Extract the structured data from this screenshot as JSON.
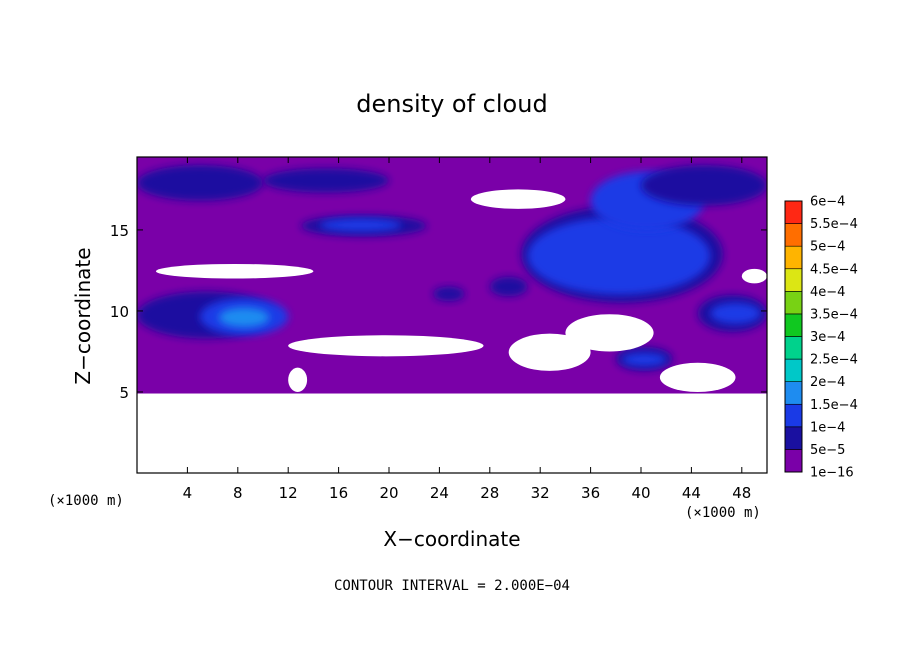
{
  "chart_data": {
    "type": "heatmap",
    "title": "density of cloud",
    "xlabel": "X−coordinate",
    "ylabel": "Z−coordinate",
    "x_unit": "(×1000 m)",
    "y_unit": "(×1000 m)",
    "xlim": [
      0,
      50
    ],
    "ylim": [
      0,
      19.5
    ],
    "x_ticks": [
      {
        "value": 4,
        "label": "4"
      },
      {
        "value": 8,
        "label": "8"
      },
      {
        "value": 12,
        "label": "12"
      },
      {
        "value": 16,
        "label": "16"
      },
      {
        "value": 20,
        "label": "20"
      },
      {
        "value": 24,
        "label": "24"
      },
      {
        "value": 28,
        "label": "28"
      },
      {
        "value": 32,
        "label": "32"
      },
      {
        "value": 36,
        "label": "36"
      },
      {
        "value": 40,
        "label": "40"
      },
      {
        "value": 44,
        "label": "44"
      },
      {
        "value": 48,
        "label": "48"
      }
    ],
    "y_ticks": [
      {
        "value": 5,
        "label": "5"
      },
      {
        "value": 10,
        "label": "10"
      },
      {
        "value": 15,
        "label": "15"
      }
    ],
    "footer": "CONTOUR INTERVAL = 2.000E−04",
    "colorbar": {
      "levels": [
        {
          "label": "1e−16",
          "color": "#7a00a8"
        },
        {
          "label": "5e−5",
          "color": "#1a10a0"
        },
        {
          "label": "1e−4",
          "color": "#1a3ae6"
        },
        {
          "label": "1.5e−4",
          "color": "#1e8cf0"
        },
        {
          "label": "2e−4",
          "color": "#00c8c8"
        },
        {
          "label": "2.5e−4",
          "color": "#00d28c"
        },
        {
          "label": "3e−4",
          "color": "#10c820"
        },
        {
          "label": "3.5e−4",
          "color": "#78d214"
        },
        {
          "label": "4e−4",
          "color": "#dce614"
        },
        {
          "label": "4.5e−4",
          "color": "#ffb400"
        },
        {
          "label": "5e−4",
          "color": "#ff6e00"
        },
        {
          "label": "5.5e−4",
          "color": "#ff2814"
        },
        {
          "label": "6e−4",
          "color": "#ff8c8c"
        }
      ]
    },
    "regions": [
      {
        "kind": "base",
        "x": [
          0,
          50
        ],
        "z": [
          4.9,
          19.5
        ],
        "level": 0
      },
      {
        "kind": "blob",
        "x": [
          0,
          10
        ],
        "z": [
          16.8,
          19
        ],
        "level": 1
      },
      {
        "kind": "blob",
        "x": [
          10,
          20
        ],
        "z": [
          17.3,
          18.8
        ],
        "level": 1
      },
      {
        "kind": "blob",
        "x": [
          13,
          23
        ],
        "z": [
          14.6,
          15.9
        ],
        "level": 1
      },
      {
        "kind": "blob",
        "x": [
          14.5,
          21
        ],
        "z": [
          14.9,
          15.7
        ],
        "level": 2
      },
      {
        "kind": "blob",
        "x": [
          0,
          11
        ],
        "z": [
          8.3,
          11.2
        ],
        "level": 1
      },
      {
        "kind": "blob",
        "x": [
          5,
          12
        ],
        "z": [
          8.5,
          10.8
        ],
        "level": 2
      },
      {
        "kind": "blob",
        "x": [
          6.5,
          10.5
        ],
        "z": [
          9.0,
          10.2
        ],
        "level": 3
      },
      {
        "kind": "blob",
        "x": [
          30.5,
          46.5
        ],
        "z": [
          10.5,
          16.5
        ],
        "level": 1
      },
      {
        "kind": "blob",
        "x": [
          31,
          45.5
        ],
        "z": [
          11.0,
          15.8
        ],
        "level": 2
      },
      {
        "kind": "blob",
        "x": [
          36,
          45
        ],
        "z": [
          15.0,
          18.6
        ],
        "level": 2
      },
      {
        "kind": "blob",
        "x": [
          40,
          50
        ],
        "z": [
          16.5,
          19.0
        ],
        "level": 1
      },
      {
        "kind": "blob",
        "x": [
          44.5,
          50
        ],
        "z": [
          8.7,
          11.0
        ],
        "level": 1
      },
      {
        "kind": "blob",
        "x": [
          45.5,
          49.5
        ],
        "z": [
          9.2,
          10.5
        ],
        "level": 2
      },
      {
        "kind": "blob",
        "x": [
          38,
          42.5
        ],
        "z": [
          6.3,
          7.8
        ],
        "level": 1
      },
      {
        "kind": "blob",
        "x": [
          38.5,
          42
        ],
        "z": [
          6.6,
          7.4
        ],
        "level": 2
      },
      {
        "kind": "blob",
        "x": [
          28,
          31
        ],
        "z": [
          10.9,
          12.1
        ],
        "level": 1
      },
      {
        "kind": "blob",
        "x": [
          23.5,
          26
        ],
        "z": [
          10.6,
          11.5
        ],
        "level": 1
      },
      {
        "kind": "gap",
        "x": [
          0,
          50
        ],
        "z": [
          0,
          4.9
        ]
      },
      {
        "kind": "gap",
        "x": [
          1.5,
          14
        ],
        "z": [
          12.0,
          12.9
        ]
      },
      {
        "kind": "gap",
        "x": [
          12,
          27.5
        ],
        "z": [
          7.2,
          8.5
        ]
      },
      {
        "kind": "gap",
        "x": [
          29.5,
          36
        ],
        "z": [
          6.3,
          8.6
        ]
      },
      {
        "kind": "gap",
        "x": [
          34,
          41
        ],
        "z": [
          7.5,
          9.8
        ]
      },
      {
        "kind": "gap",
        "x": [
          26.5,
          34
        ],
        "z": [
          16.3,
          17.5
        ]
      },
      {
        "kind": "gap",
        "x": [
          41.5,
          47.5
        ],
        "z": [
          5.0,
          6.8
        ]
      },
      {
        "kind": "gap",
        "x": [
          12,
          13.5
        ],
        "z": [
          5.0,
          6.5
        ]
      },
      {
        "kind": "gap",
        "x": [
          48,
          50
        ],
        "z": [
          11.7,
          12.6
        ]
      }
    ]
  }
}
